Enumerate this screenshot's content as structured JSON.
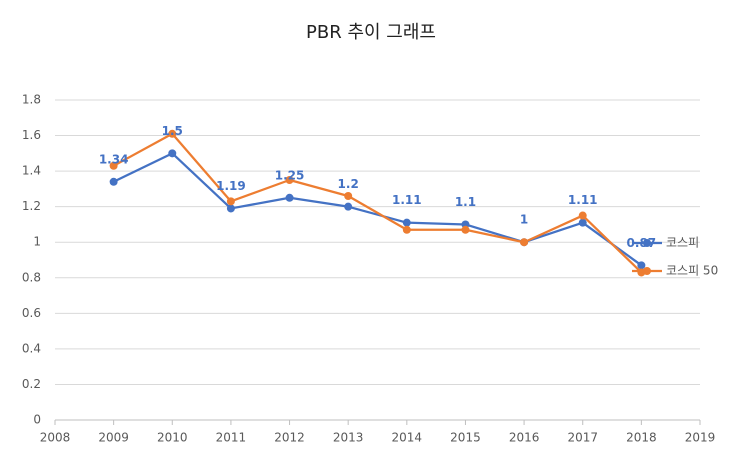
{
  "chart_data": {
    "type": "line",
    "title": "PBR 추이 그래프",
    "x": [
      2009,
      2010,
      2011,
      2012,
      2013,
      2014,
      2015,
      2016,
      2017,
      2018
    ],
    "series": [
      {
        "name": "코스피",
        "color": "#4472c4",
        "values": [
          1.34,
          1.5,
          1.19,
          1.25,
          1.2,
          1.11,
          1.1,
          1,
          1.11,
          0.87
        ],
        "data_labels": true
      },
      {
        "name": "코스피 50",
        "color": "#ed7d31",
        "values": [
          1.43,
          1.61,
          1.23,
          1.35,
          1.26,
          1.07,
          1.07,
          1.0,
          1.15,
          0.83
        ],
        "data_labels": false
      }
    ],
    "xlim": [
      2008,
      2019
    ],
    "xticks": [
      2008,
      2009,
      2010,
      2011,
      2012,
      2013,
      2014,
      2015,
      2016,
      2017,
      2018,
      2019
    ],
    "ylim": [
      0,
      1.8
    ],
    "yticks": [
      0,
      0.2,
      0.4,
      0.6,
      0.8,
      1,
      1.2,
      1.4,
      1.6,
      1.8
    ],
    "grid": true,
    "legend": "right"
  }
}
